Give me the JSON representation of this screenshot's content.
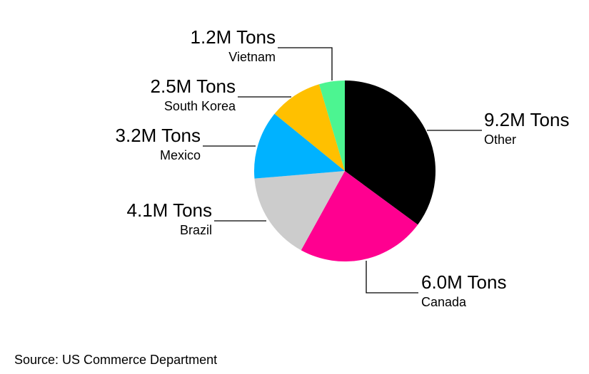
{
  "chart_data": {
    "type": "pie",
    "unit": "Tons",
    "slices": [
      {
        "label": "Other",
        "value": 9.2,
        "value_label": "9.2M Tons",
        "color": "#000000"
      },
      {
        "label": "Canada",
        "value": 6.0,
        "value_label": "6.0M Tons",
        "color": "#ff0090"
      },
      {
        "label": "Brazil",
        "value": 4.1,
        "value_label": "4.1M Tons",
        "color": "#cccccc"
      },
      {
        "label": "Mexico",
        "value": 3.2,
        "value_label": "3.2M Tons",
        "color": "#00b2ff"
      },
      {
        "label": "South Korea",
        "value": 2.5,
        "value_label": "2.5M Tons",
        "color": "#ffc000"
      },
      {
        "label": "Vietnam",
        "value": 1.2,
        "value_label": "1.2M Tons",
        "color": "#4cf591"
      }
    ],
    "start_angle": "12 o'clock",
    "direction": "clockwise",
    "legend": "none"
  },
  "footer": {
    "source": "Source: US Commerce Department"
  }
}
